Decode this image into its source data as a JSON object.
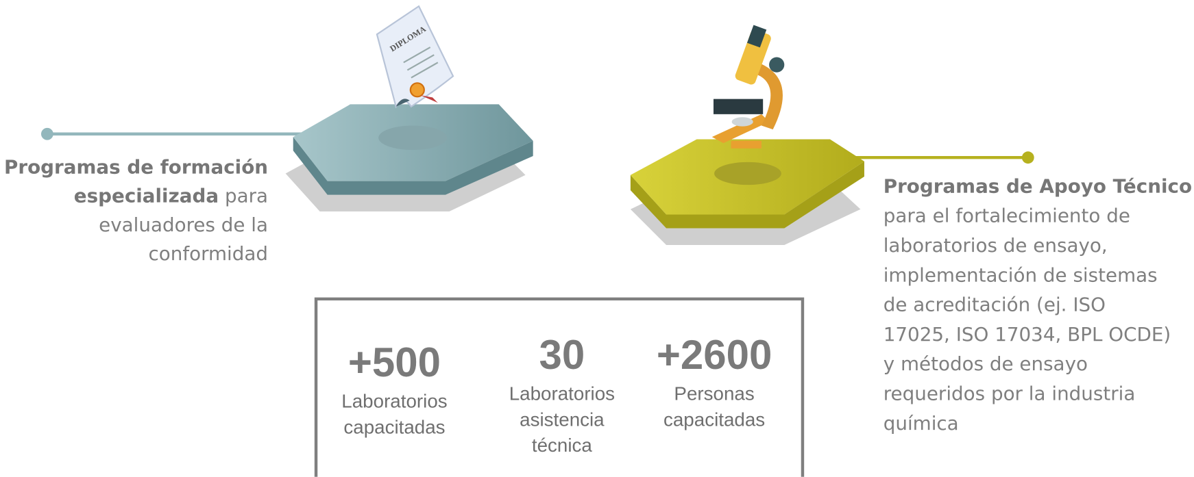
{
  "left": {
    "title_lines": [
      "Programas de formación",
      "especializada"
    ],
    "text_lines": [
      "para",
      "evaluadores de la",
      "conformidad"
    ]
  },
  "right": {
    "title": "Programas de Apoyo Técnico",
    "text_lines": [
      "para el fortalecimiento de",
      "laboratorios de ensayo,",
      "implementación de sistemas",
      "de acreditación (ej. ISO",
      "17025, ISO 17034, BPL OCDE)",
      "y métodos de ensayo",
      "requeridos por la industria",
      "química"
    ]
  },
  "stats": [
    {
      "value": "+500",
      "label_lines": [
        "Laboratorios",
        "capacitadas"
      ]
    },
    {
      "value": "30",
      "label_lines": [
        "Laboratorios",
        "asistencia",
        "técnica"
      ]
    },
    {
      "value": "+2600",
      "label_lines": [
        "Personas",
        "capacitadas"
      ]
    }
  ],
  "diploma": "DIPLOMA"
}
